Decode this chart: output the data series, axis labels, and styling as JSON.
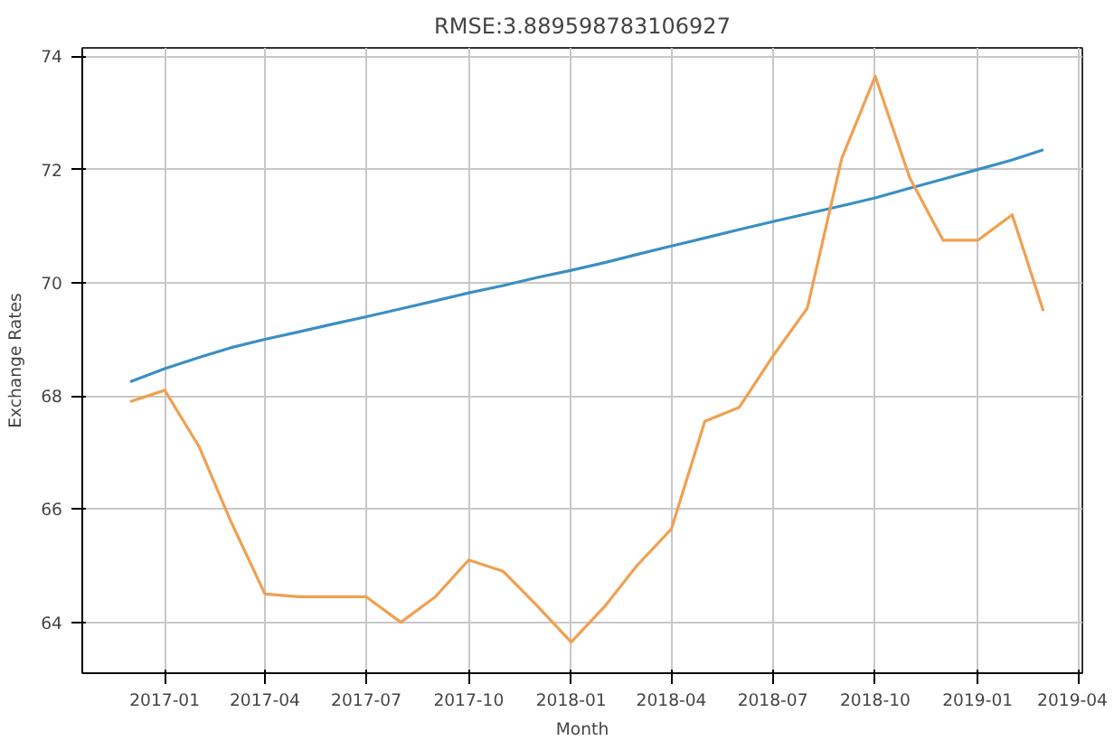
{
  "chart_data": {
    "type": "line",
    "title": "RMSE:3.889598783106927",
    "xlabel": "Month",
    "ylabel": "Exchange Rates",
    "x": [
      "2016-12",
      "2017-01",
      "2017-02",
      "2017-03",
      "2017-04",
      "2017-05",
      "2017-06",
      "2017-07",
      "2017-08",
      "2017-09",
      "2017-10",
      "2017-11",
      "2017-12",
      "2018-01",
      "2018-02",
      "2018-03",
      "2018-04",
      "2018-05",
      "2018-06",
      "2018-07",
      "2018-08",
      "2018-09",
      "2018-10",
      "2018-11",
      "2018-12",
      "2019-01",
      "2019-02",
      "2019-03"
    ],
    "series": [
      {
        "color": "#3a8fc4",
        "values": [
          68.25,
          68.48,
          68.68,
          68.85,
          69.0,
          69.13,
          69.27,
          69.4,
          69.54,
          69.68,
          69.82,
          69.95,
          70.09,
          70.22,
          70.36,
          70.5,
          70.65,
          70.79,
          70.94,
          71.08,
          71.22,
          71.36,
          71.5,
          71.67,
          71.83,
          72.0,
          72.17,
          72.35
        ]
      },
      {
        "color": "#f0a050",
        "values": [
          67.9,
          68.1,
          67.1,
          65.8,
          64.5,
          64.45,
          64.45,
          64.45,
          64.0,
          64.45,
          65.1,
          64.9,
          64.3,
          63.65,
          64.3,
          65.0,
          65.65,
          67.55,
          67.8,
          68.7,
          69.55,
          72.2,
          73.65,
          71.85,
          70.75,
          70.75,
          71.2,
          69.5
        ]
      }
    ],
    "xlim": [
      "2016-10-19",
      "2019-04-05"
    ],
    "ylim": [
      63.1,
      74.15
    ],
    "xticks": [
      {
        "value": "2017-01",
        "label": "2017-01"
      },
      {
        "value": "2017-04",
        "label": "2017-04"
      },
      {
        "value": "2017-07",
        "label": "2017-07"
      },
      {
        "value": "2017-10",
        "label": "2017-10"
      },
      {
        "value": "2018-01",
        "label": "2018-01"
      },
      {
        "value": "2018-04",
        "label": "2018-04"
      },
      {
        "value": "2018-07",
        "label": "2018-07"
      },
      {
        "value": "2018-10",
        "label": "2018-10"
      },
      {
        "value": "2019-01",
        "label": "2019-01"
      },
      {
        "value": "2019-04",
        "label": "2019-04"
      }
    ],
    "yticks": [
      64,
      66,
      68,
      70,
      72,
      74
    ],
    "grid": true,
    "line_style": "solid",
    "marker": "none"
  }
}
